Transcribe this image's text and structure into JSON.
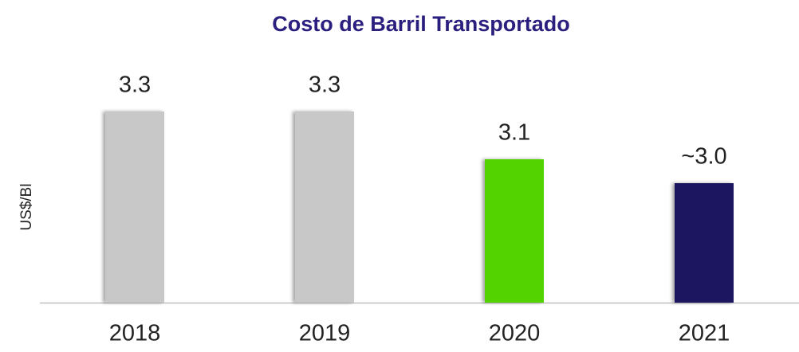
{
  "chart_data": {
    "type": "bar",
    "title": "Costo de Barril Transportado",
    "y_label": "US$/Bl",
    "categories": [
      "2018",
      "2019",
      "2020",
      "2021"
    ],
    "values": [
      3.3,
      3.3,
      3.1,
      3.0
    ],
    "value_labels": [
      "3.3",
      "3.3",
      "3.1",
      "~3.0"
    ],
    "colors": [
      "#c8c8c8",
      "#c8c8c8",
      "#52d400",
      "#1d1260"
    ],
    "ylim": [
      2.5,
      3.5
    ]
  }
}
